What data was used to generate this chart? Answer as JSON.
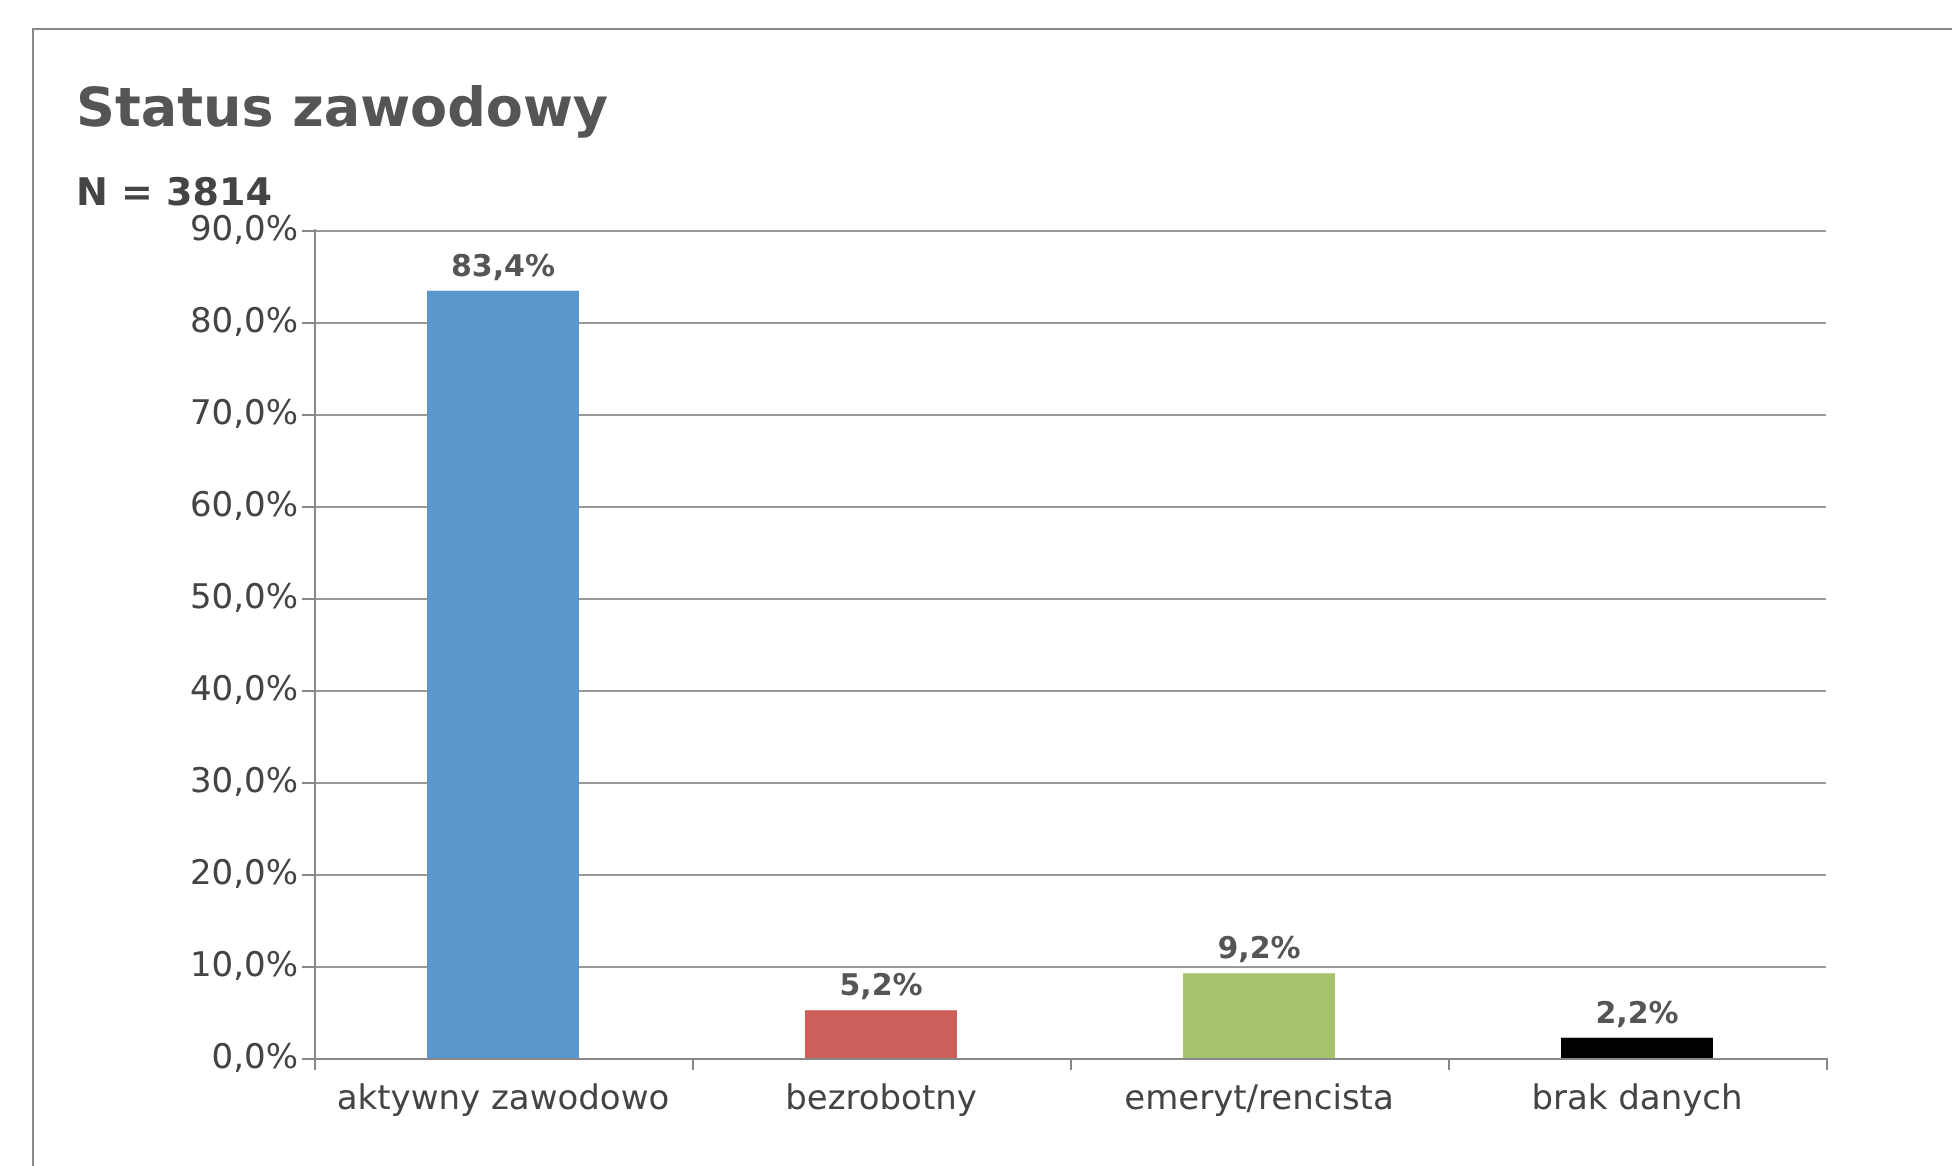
{
  "chart_data": {
    "type": "bar",
    "title": "Status zawodowy",
    "subtitle": "N = 3814",
    "categories": [
      "aktywny zawodowo",
      "bezrobotny",
      "emeryt/rencista",
      "brak danych"
    ],
    "values": [
      83.4,
      5.2,
      9.2,
      2.2
    ],
    "colors": [
      "#5b96cc",
      "#cc5f5a",
      "#a6c26a",
      "#000000"
    ],
    "value_labels": [
      "83,4%",
      "5,2%",
      "9,2%",
      "2,2%"
    ],
    "ylim": [
      0,
      90
    ],
    "yticks": [
      {
        "value": 0,
        "label": "0,0%"
      },
      {
        "value": 10,
        "label": "10,0%"
      },
      {
        "value": 20,
        "label": "20,0%"
      },
      {
        "value": 30,
        "label": "30,0%"
      },
      {
        "value": 40,
        "label": "40,0%"
      },
      {
        "value": 50,
        "label": "50,0%"
      },
      {
        "value": 60,
        "label": "60,0%"
      },
      {
        "value": 70,
        "label": "70,0%"
      },
      {
        "value": 80,
        "label": "80,0%"
      },
      {
        "value": 90,
        "label": "90,0%"
      }
    ],
    "grid": "y"
  }
}
